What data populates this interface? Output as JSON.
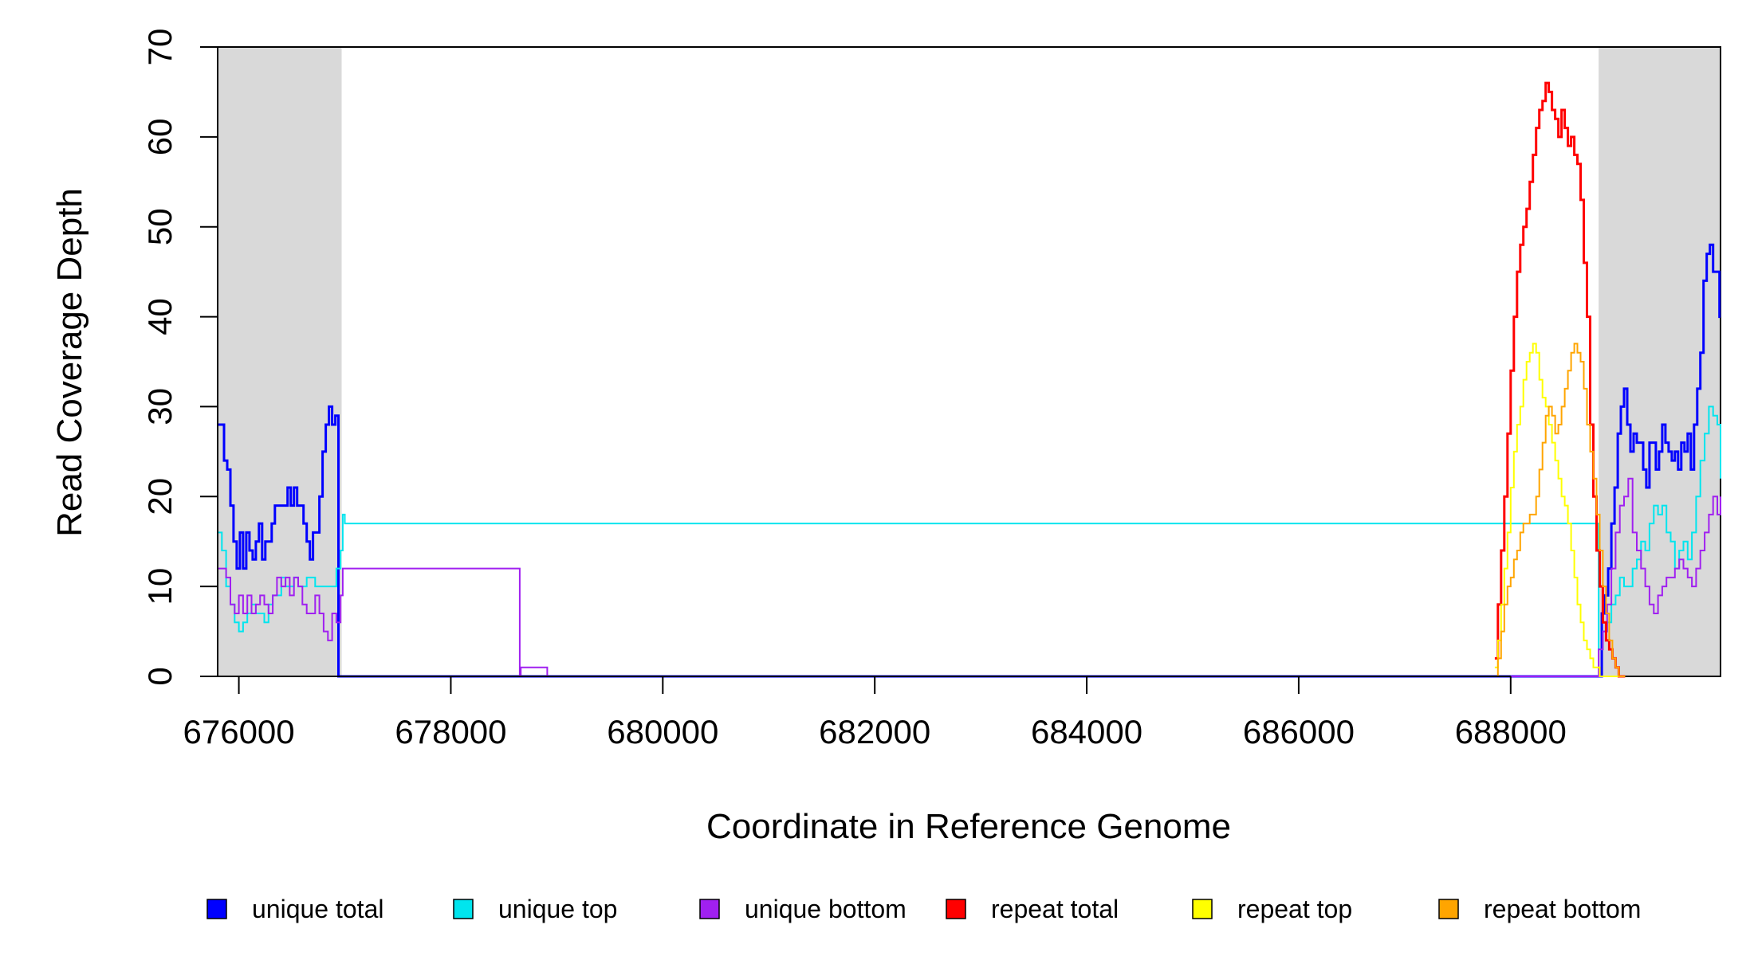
{
  "chart_data": {
    "type": "line",
    "xlabel": "Coordinate in Reference Genome",
    "ylabel": "Read Coverage Depth",
    "xlim": [
      675800,
      689980
    ],
    "ylim": [
      0,
      70
    ],
    "grid": false,
    "legend_position": "bottom",
    "x_ticks": [
      676000,
      678000,
      680000,
      682000,
      684000,
      686000,
      688000
    ],
    "y_ticks": [
      0,
      10,
      20,
      30,
      40,
      50,
      60,
      70
    ],
    "shaded_regions": [
      {
        "x0": 675800,
        "x1": 676970,
        "color": "#d9d9d9"
      },
      {
        "x0": 688830,
        "x1": 689980,
        "color": "#d9d9d9"
      }
    ],
    "series": [
      {
        "name": "unique total",
        "color": "#0000ff",
        "width": 3,
        "x": [
          675800,
          675830,
          675860,
          675890,
          675920,
          675950,
          675980,
          676010,
          676040,
          676070,
          676100,
          676130,
          676160,
          676190,
          676220,
          676250,
          676280,
          676310,
          676340,
          676370,
          676400,
          676430,
          676460,
          676490,
          676520,
          676550,
          676580,
          676610,
          676640,
          676670,
          676700,
          676730,
          676760,
          676790,
          676820,
          676850,
          676880,
          676910,
          676940,
          676970,
          677000,
          678650,
          678900,
          681750,
          682000,
          688700,
          688790,
          688830,
          688860,
          688890,
          688920,
          688950,
          688980,
          689010,
          689040,
          689070,
          689100,
          689130,
          689160,
          689190,
          689220,
          689250,
          689280,
          689310,
          689340,
          689370,
          689400,
          689430,
          689460,
          689490,
          689520,
          689550,
          689580,
          689610,
          689640,
          689670,
          689700,
          689730,
          689760,
          689790,
          689820,
          689850,
          689880,
          689910,
          689940,
          689970,
          689980
        ],
        "y": [
          28,
          28,
          24,
          23,
          19,
          15,
          12,
          16,
          12,
          16,
          14,
          13,
          15,
          17,
          13,
          15,
          15,
          17,
          19,
          19,
          19,
          19,
          21,
          19,
          21,
          19,
          19,
          17,
          15,
          13,
          16,
          16,
          20,
          25,
          28,
          30,
          28,
          29,
          0,
          0,
          0,
          0,
          0,
          0,
          0,
          0,
          0,
          0,
          7,
          9,
          12,
          17,
          21,
          27,
          30,
          32,
          28,
          25,
          27,
          26,
          26,
          23,
          21,
          26,
          26,
          23,
          25,
          28,
          26,
          25,
          24,
          25,
          23,
          26,
          25,
          27,
          23,
          28,
          32,
          36,
          44,
          47,
          48,
          45,
          45,
          40,
          40
        ]
      },
      {
        "name": "unique top",
        "color": "#00e5ee",
        "width": 2,
        "x": [
          675800,
          675840,
          675880,
          675920,
          675960,
          676000,
          676040,
          676080,
          676120,
          676160,
          676200,
          676240,
          676280,
          676320,
          676360,
          676400,
          676440,
          676480,
          676520,
          676560,
          676600,
          676640,
          676680,
          676720,
          676760,
          676800,
          676840,
          676880,
          676920,
          676960,
          676980,
          677000,
          688830,
          688870,
          688910,
          688950,
          688990,
          689030,
          689070,
          689110,
          689150,
          689190,
          689230,
          689270,
          689310,
          689350,
          689390,
          689430,
          689470,
          689510,
          689550,
          689590,
          689630,
          689670,
          689710,
          689750,
          689790,
          689830,
          689870,
          689910,
          689950,
          689980
        ],
        "y": [
          16,
          14,
          10,
          8,
          6,
          5,
          6,
          7,
          8,
          7,
          7,
          6,
          8,
          9,
          9,
          11,
          10,
          10,
          11,
          10,
          10,
          11,
          11,
          10,
          10,
          10,
          10,
          10,
          12,
          14,
          18,
          17,
          3,
          5,
          6,
          8,
          9,
          11,
          10,
          10,
          12,
          13,
          15,
          14,
          17,
          19,
          18,
          19,
          16,
          15,
          12,
          14,
          15,
          13,
          16,
          20,
          24,
          27,
          30,
          29,
          28,
          22
        ]
      },
      {
        "name": "unique bottom",
        "color": "#a020f0",
        "width": 2,
        "x": [
          675800,
          675840,
          675880,
          675920,
          675960,
          676000,
          676040,
          676080,
          676120,
          676160,
          676200,
          676240,
          676280,
          676320,
          676360,
          676400,
          676440,
          676480,
          676520,
          676560,
          676600,
          676640,
          676680,
          676720,
          676760,
          676800,
          676840,
          676880,
          676920,
          676960,
          676980,
          677000,
          678650,
          678660,
          678900,
          678910,
          688830,
          688870,
          688910,
          688950,
          688990,
          689030,
          689070,
          689110,
          689150,
          689190,
          689230,
          689270,
          689310,
          689350,
          689390,
          689430,
          689470,
          689510,
          689550,
          689590,
          689630,
          689670,
          689710,
          689750,
          689790,
          689830,
          689870,
          689910,
          689950,
          689980
        ],
        "y": [
          12,
          12,
          11,
          8,
          7,
          9,
          7,
          9,
          7,
          8,
          9,
          8,
          7,
          9,
          11,
          10,
          11,
          9,
          11,
          10,
          8,
          7,
          7,
          9,
          7,
          5,
          4,
          7,
          6,
          9,
          12,
          12,
          0,
          1,
          1,
          0,
          3,
          5,
          8,
          12,
          16,
          19,
          20,
          22,
          16,
          14,
          12,
          10,
          8,
          7,
          9,
          10,
          11,
          11,
          12,
          13,
          12,
          11,
          10,
          12,
          14,
          16,
          18,
          20,
          18,
          20
        ]
      },
      {
        "name": "repeat total",
        "color": "#ff0000",
        "width": 3,
        "x": [
          687850,
          687880,
          687910,
          687940,
          687970,
          688000,
          688030,
          688060,
          688090,
          688120,
          688150,
          688180,
          688210,
          688240,
          688270,
          688300,
          688330,
          688360,
          688390,
          688420,
          688450,
          688480,
          688510,
          688540,
          688570,
          688600,
          688630,
          688660,
          688690,
          688720,
          688750,
          688780,
          688810,
          688840,
          688870,
          688900,
          688930,
          688960,
          688990,
          689020,
          689050,
          689080
        ],
        "y": [
          2,
          8,
          14,
          20,
          27,
          34,
          40,
          45,
          48,
          50,
          52,
          55,
          58,
          61,
          63,
          64,
          66,
          65,
          63,
          62,
          60,
          63,
          61,
          59,
          60,
          58,
          57,
          53,
          46,
          40,
          28,
          20,
          14,
          10,
          6,
          4,
          3,
          2,
          1,
          0,
          0,
          0
        ]
      },
      {
        "name": "repeat top",
        "color": "#ffff00",
        "width": 2,
        "x": [
          687850,
          687880,
          687910,
          687940,
          687970,
          688000,
          688030,
          688060,
          688090,
          688120,
          688150,
          688180,
          688210,
          688240,
          688270,
          688300,
          688330,
          688360,
          688390,
          688420,
          688450,
          688480,
          688510,
          688540,
          688570,
          688600,
          688630,
          688660,
          688690,
          688720,
          688750,
          688780,
          688810,
          688840,
          688870,
          688900,
          688930,
          688960,
          688990,
          689020,
          689050,
          689080
        ],
        "y": [
          1,
          4,
          8,
          12,
          16,
          21,
          25,
          28,
          30,
          33,
          35,
          36,
          37,
          36,
          33,
          31,
          30,
          28,
          26,
          24,
          22,
          20,
          19,
          17,
          14,
          11,
          8,
          6,
          4,
          3,
          2,
          1,
          1,
          0,
          0,
          0,
          0,
          0,
          0,
          0,
          0,
          0
        ]
      },
      {
        "name": "repeat bottom",
        "color": "#ffa500",
        "width": 2,
        "x": [
          687850,
          687880,
          687910,
          687940,
          687970,
          688000,
          688030,
          688060,
          688090,
          688120,
          688150,
          688180,
          688210,
          688240,
          688270,
          688300,
          688330,
          688360,
          688390,
          688420,
          688450,
          688480,
          688510,
          688540,
          688570,
          688600,
          688630,
          688660,
          688690,
          688720,
          688750,
          688780,
          688810,
          688840,
          688870,
          688900,
          688930,
          688960,
          688990,
          689020,
          689050,
          689080
        ],
        "y": [
          0,
          2,
          5,
          8,
          10,
          11,
          13,
          14,
          16,
          17,
          17,
          18,
          18,
          20,
          23,
          26,
          29,
          30,
          29,
          27,
          28,
          30,
          32,
          34,
          36,
          37,
          36,
          35,
          32,
          28,
          25,
          22,
          18,
          14,
          10,
          7,
          4,
          2,
          1,
          0,
          0,
          0
        ]
      }
    ]
  }
}
